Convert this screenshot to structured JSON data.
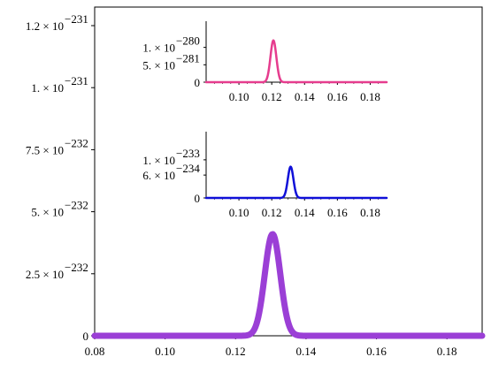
{
  "chart_data": [
    {
      "id": "main",
      "type": "line",
      "title": "",
      "xlabel": "",
      "ylabel": "",
      "xlim": [
        0.08,
        0.19
      ],
      "ylim": [
        0,
        1.25
      ],
      "y_exponent_note": "y values in units of 1e-231",
      "x_ticks": [
        {
          "value": 0.08,
          "label": "0.08"
        },
        {
          "value": 0.1,
          "label": "0.10"
        },
        {
          "value": 0.12,
          "label": "0.12"
        },
        {
          "value": 0.14,
          "label": "0.14"
        },
        {
          "value": 0.16,
          "label": "0.16"
        },
        {
          "value": 0.18,
          "label": "0.18"
        }
      ],
      "y_ticks": [
        {
          "value": 0,
          "mantissa": "0",
          "exponent": ""
        },
        {
          "value": 0.25,
          "mantissa": "2.5 × 10",
          "exponent": "−232"
        },
        {
          "value": 0.5,
          "mantissa": "5. × 10",
          "exponent": "−232"
        },
        {
          "value": 0.75,
          "mantissa": "7.5 × 10",
          "exponent": "−232"
        },
        {
          "value": 1.0,
          "mantissa": "1. × 10",
          "exponent": "−231"
        },
        {
          "value": 1.25,
          "mantissa": "1.2 × 10",
          "exponent": "−231"
        }
      ],
      "grid": false,
      "series": [
        {
          "color": "#9b3fd6",
          "peak_x": 0.1305,
          "peak_y": 0.41,
          "width": 0.0022,
          "stroke": 7,
          "x": [
            0.08,
            0.1245,
            0.1265,
            0.128,
            0.1292,
            0.1305,
            0.1318,
            0.133,
            0.1345,
            0.1365,
            0.19
          ],
          "y": [
            0,
            0.0,
            0.03,
            0.13,
            0.3,
            0.41,
            0.3,
            0.13,
            0.03,
            0.0,
            0
          ]
        }
      ]
    },
    {
      "id": "inset-top",
      "type": "line",
      "title": "",
      "xlim": [
        0.08,
        0.19
      ],
      "ylim": [
        0,
        1.6
      ],
      "y_exponent_note": "y values in units of 1e-280",
      "x_ticks": [
        {
          "value": 0.1,
          "label": "0.10"
        },
        {
          "value": 0.12,
          "label": "0.12"
        },
        {
          "value": 0.14,
          "label": "0.14"
        },
        {
          "value": 0.16,
          "label": "0.16"
        },
        {
          "value": 0.18,
          "label": "0.18"
        }
      ],
      "y_ticks": [
        {
          "value": 0,
          "mantissa": "0",
          "exponent": ""
        },
        {
          "value": 0.5,
          "mantissa": "5. × 10",
          "exponent": "−281"
        },
        {
          "value": 1.0,
          "mantissa": "1. × 10",
          "exponent": "−280"
        }
      ],
      "grid": false,
      "series": [
        {
          "color": "#e63c8e",
          "peak_x": 0.121,
          "peak_y": 1.2,
          "width": 0.0018,
          "stroke": 2.5,
          "x": [
            0.08,
            0.1165,
            0.119,
            0.121,
            0.123,
            0.1255,
            0.19
          ],
          "y": [
            0,
            0.0,
            0.5,
            1.2,
            0.5,
            0.0,
            0
          ]
        }
      ]
    },
    {
      "id": "inset-bottom",
      "type": "line",
      "title": "",
      "xlim": [
        0.08,
        0.19
      ],
      "ylim": [
        0,
        1.6
      ],
      "y_exponent_note": "y values in units of 1e-233",
      "x_ticks": [
        {
          "value": 0.1,
          "label": "0.10"
        },
        {
          "value": 0.12,
          "label": "0.12"
        },
        {
          "value": 0.14,
          "label": "0.14"
        },
        {
          "value": 0.16,
          "label": "0.16"
        },
        {
          "value": 0.18,
          "label": "0.18"
        }
      ],
      "y_ticks": [
        {
          "value": 0,
          "mantissa": "0",
          "exponent": ""
        },
        {
          "value": 0.6,
          "mantissa": "6. × 10",
          "exponent": "−234"
        },
        {
          "value": 1.0,
          "mantissa": "1. × 10",
          "exponent": "−233"
        }
      ],
      "grid": false,
      "series": [
        {
          "color": "#1010d8",
          "peak_x": 0.1315,
          "peak_y": 0.82,
          "width": 0.0017,
          "stroke": 2.5,
          "x": [
            0.08,
            0.127,
            0.1295,
            0.1315,
            0.1335,
            0.136,
            0.19
          ],
          "y": [
            0,
            0.0,
            0.3,
            0.82,
            0.3,
            0.0,
            0
          ]
        }
      ]
    }
  ]
}
